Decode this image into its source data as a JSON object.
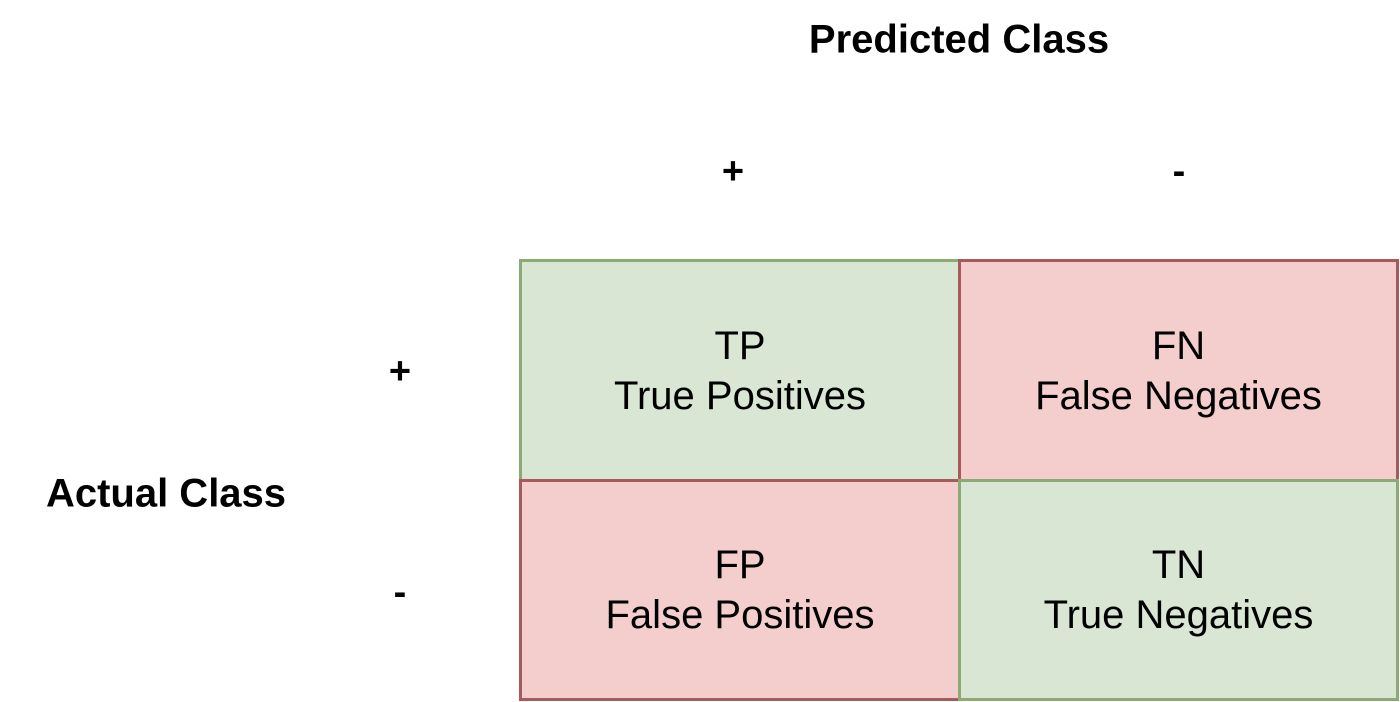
{
  "predicted_axis": {
    "title": "Predicted Class",
    "positive_label": "+",
    "negative_label": "-"
  },
  "actual_axis": {
    "title": "Actual Class",
    "positive_label": "+",
    "negative_label": "-"
  },
  "matrix": {
    "tp": {
      "abbr": "TP",
      "full": "True Positives",
      "fill": "#d9e6d3",
      "border": "#8bab74"
    },
    "fn": {
      "abbr": "FN",
      "full": "False Negatives",
      "fill": "#f4cecd",
      "border": "#a85a5a"
    },
    "fp": {
      "abbr": "FP",
      "full": "False Positives",
      "fill": "#f4cecd",
      "border": "#a85a5a"
    },
    "tn": {
      "abbr": "TN",
      "full": "True Negatives",
      "fill": "#d9e6d3",
      "border": "#8bab74"
    }
  }
}
